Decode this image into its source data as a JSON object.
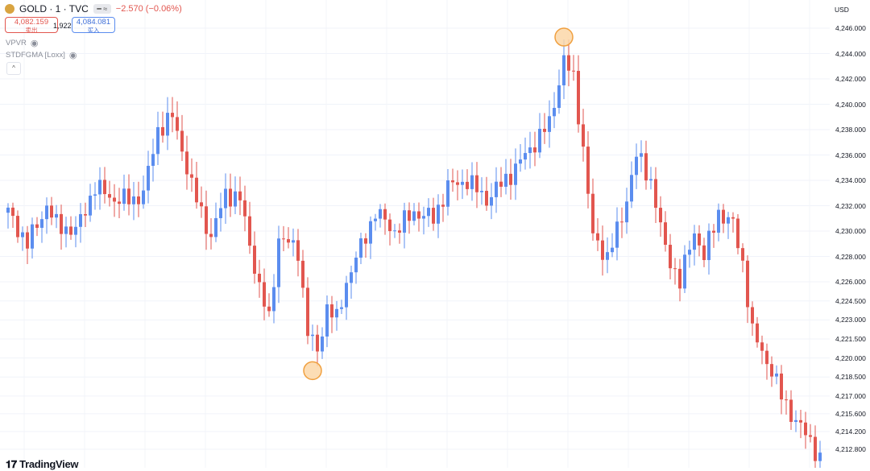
{
  "header": {
    "symbol": "GOLD · 1 · TVC",
    "change": "−2.570 (−0.06%)",
    "sell_price": "4,082.159",
    "sell_label": "卖出",
    "spread": "1,922",
    "buy_price": "4,084.081",
    "buy_label": "买入"
  },
  "indicators": [
    {
      "name": "VPVR"
    },
    {
      "name": "STDFGMA [Loxx]"
    }
  ],
  "currency": "USD",
  "logo": "TradingView",
  "colors": {
    "up": "#5b8def",
    "down": "#e2564f",
    "highlight_fill": "#fbd7a8",
    "highlight_stroke": "#f0a040"
  },
  "chart_data": {
    "type": "candlestick",
    "ylim": [
      4211.5,
      4247.0
    ],
    "y_tick_labels": [
      "4,246.000",
      "4,244.000",
      "4,242.000",
      "4,240.000",
      "4,238.000",
      "4,236.000",
      "4,234.000",
      "4,232.000",
      "4,230.000",
      "4,228.000",
      "4,226.000",
      "4,224.500",
      "4,223.000",
      "4,221.500",
      "4,220.000",
      "4,218.500",
      "4,217.000",
      "4,215.600",
      "4,214.200",
      "4,212.800"
    ],
    "y_tick_values": [
      4246.0,
      4244.0,
      4242.0,
      4240.0,
      4238.0,
      4236.0,
      4234.0,
      4232.0,
      4230.0,
      4228.0,
      4226.0,
      4224.5,
      4223.0,
      4221.5,
      4220.0,
      4218.5,
      4217.0,
      4215.6,
      4214.2,
      4212.8
    ],
    "highlights": [
      {
        "label": "high",
        "index": 115,
        "value": 4245.3
      },
      {
        "label": "low",
        "index": 63,
        "value": 4219.0
      }
    ],
    "keypoints": [
      [
        0,
        4231.5
      ],
      [
        4,
        4229.0
      ],
      [
        8,
        4232.0
      ],
      [
        10,
        4230.5
      ],
      [
        14,
        4230.0
      ],
      [
        18,
        4233.5
      ],
      [
        22,
        4232.5
      ],
      [
        26,
        4232.5
      ],
      [
        28,
        4233.0
      ],
      [
        31,
        4238.0
      ],
      [
        34,
        4239.0
      ],
      [
        36,
        4236.5
      ],
      [
        38,
        4233.5
      ],
      [
        42,
        4229.5
      ],
      [
        45,
        4233.0
      ],
      [
        48,
        4232.5
      ],
      [
        52,
        4225.5
      ],
      [
        54,
        4223.0
      ],
      [
        56,
        4229.5
      ],
      [
        60,
        4228.5
      ],
      [
        62,
        4222.0
      ],
      [
        64,
        4220.5
      ],
      [
        66,
        4224.0
      ],
      [
        68,
        4223.0
      ],
      [
        70,
        4226.0
      ],
      [
        76,
        4231.5
      ],
      [
        80,
        4230.0
      ],
      [
        84,
        4231.5
      ],
      [
        88,
        4231.0
      ],
      [
        91,
        4233.5
      ],
      [
        95,
        4234.0
      ],
      [
        99,
        4232.5
      ],
      [
        104,
        4234.5
      ],
      [
        108,
        4236.5
      ],
      [
        112,
        4238.5
      ],
      [
        115,
        4243.5
      ],
      [
        117,
        4242.0
      ],
      [
        119,
        4236.5
      ],
      [
        121,
        4229.5
      ],
      [
        124,
        4228.0
      ],
      [
        127,
        4231.0
      ],
      [
        130,
        4236.0
      ],
      [
        133,
        4234.0
      ],
      [
        136,
        4228.5
      ],
      [
        139,
        4226.0
      ],
      [
        142,
        4230.0
      ],
      [
        144,
        4228.0
      ],
      [
        147,
        4231.5
      ],
      [
        150,
        4230.5
      ],
      [
        152,
        4227.5
      ],
      [
        154,
        4222.0
      ],
      [
        158,
        4219.0
      ],
      [
        160,
        4217.0
      ],
      [
        163,
        4215.0
      ],
      [
        166,
        4213.5
      ],
      [
        168,
        4212.0
      ]
    ]
  }
}
